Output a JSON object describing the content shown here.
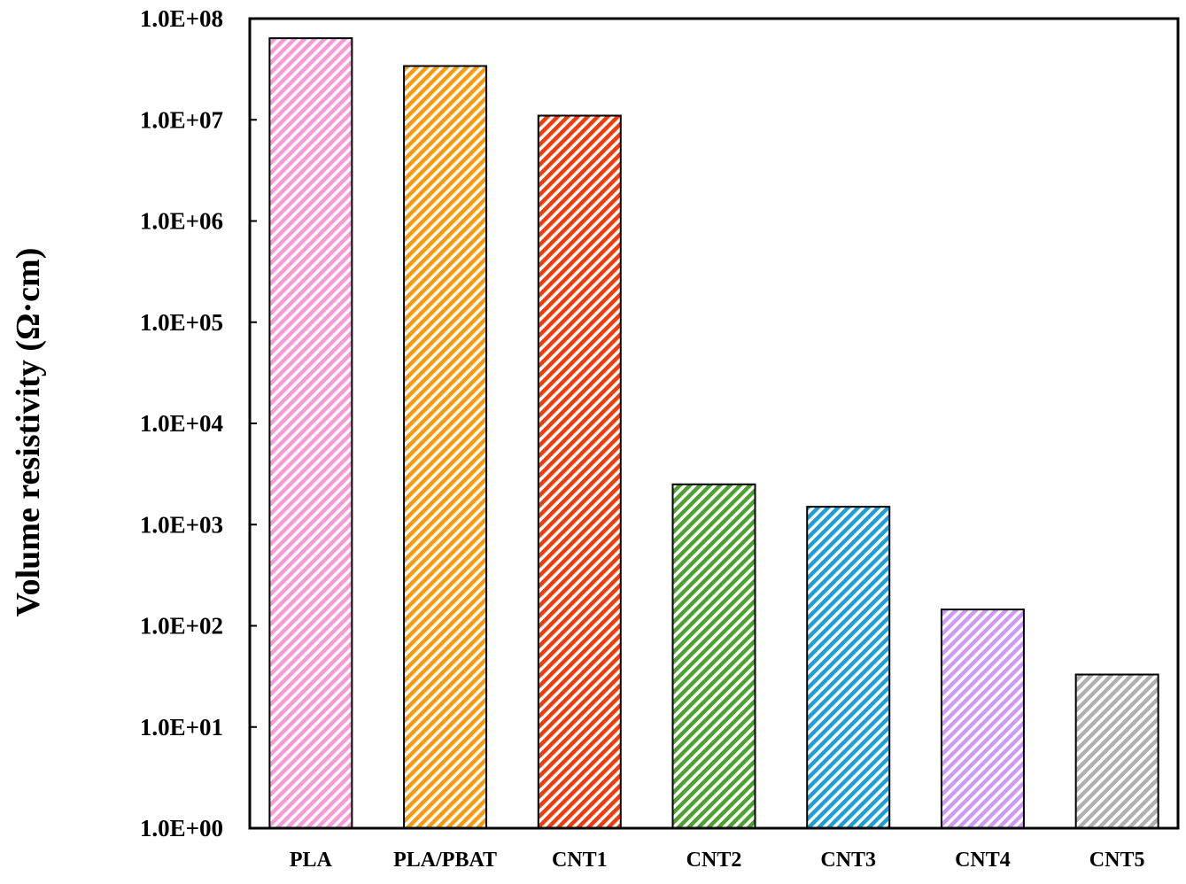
{
  "chart_data": {
    "type": "bar",
    "title": "",
    "xlabel": "",
    "ylabel": "Volume resistivity (Ω·cm)",
    "yscale": "log",
    "ylim": [
      1,
      100000000
    ],
    "grid": false,
    "legend": "none",
    "yticks": [
      "1.0E+00",
      "1.0E+01",
      "1.0E+02",
      "1.0E+03",
      "1.0E+04",
      "1.0E+05",
      "1.0E+06",
      "1.0E+07",
      "1.0E+08"
    ],
    "categories": [
      "PLA",
      "PLA/PBAT",
      "CNT1",
      "CNT2",
      "CNT3",
      "CNT4",
      "CNT5"
    ],
    "values": [
      64000000,
      34000000,
      11000000,
      2500,
      1500,
      145,
      33
    ],
    "colors": [
      "#f79ad6",
      "#f99a0e",
      "#f03b0c",
      "#4ca22e",
      "#1d9ed8",
      "#cf9af5",
      "#b0b0b0"
    ],
    "fill_style": "diagonal-hatch"
  }
}
